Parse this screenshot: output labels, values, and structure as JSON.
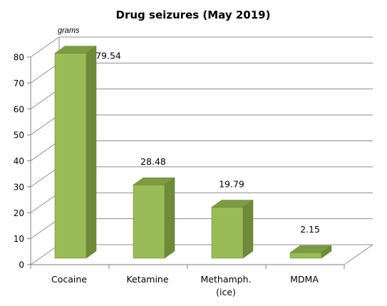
{
  "chart_data": {
    "type": "bar",
    "title": "Drug seizures (May 2019)",
    "unit_label": "grams",
    "categories": [
      "Cocaine",
      "Ketamine",
      "Methamph. (ice)",
      "MDMA"
    ],
    "category_lines": [
      [
        "Cocaine"
      ],
      [
        "Ketamine"
      ],
      [
        "Methamph.",
        "(ice)"
      ],
      [
        "MDMA"
      ]
    ],
    "values": [
      79.54,
      28.48,
      19.79,
      2.15
    ],
    "value_labels": [
      "79.54",
      "28.48",
      "19.79",
      "2.15"
    ],
    "ylim": [
      0,
      80
    ],
    "yticks": [
      0,
      10,
      20,
      30,
      40,
      50,
      60,
      70,
      80
    ],
    "grid": true,
    "legend": "none",
    "three_d": true,
    "colors": {
      "bar_front": "#9bbb59",
      "bar_side": "#6f8a3a",
      "bar_top": "#7d9b44",
      "bar_edge": "#5e7a2c",
      "grid": "#8c8c8c",
      "axis": "#7f7f7f"
    }
  }
}
